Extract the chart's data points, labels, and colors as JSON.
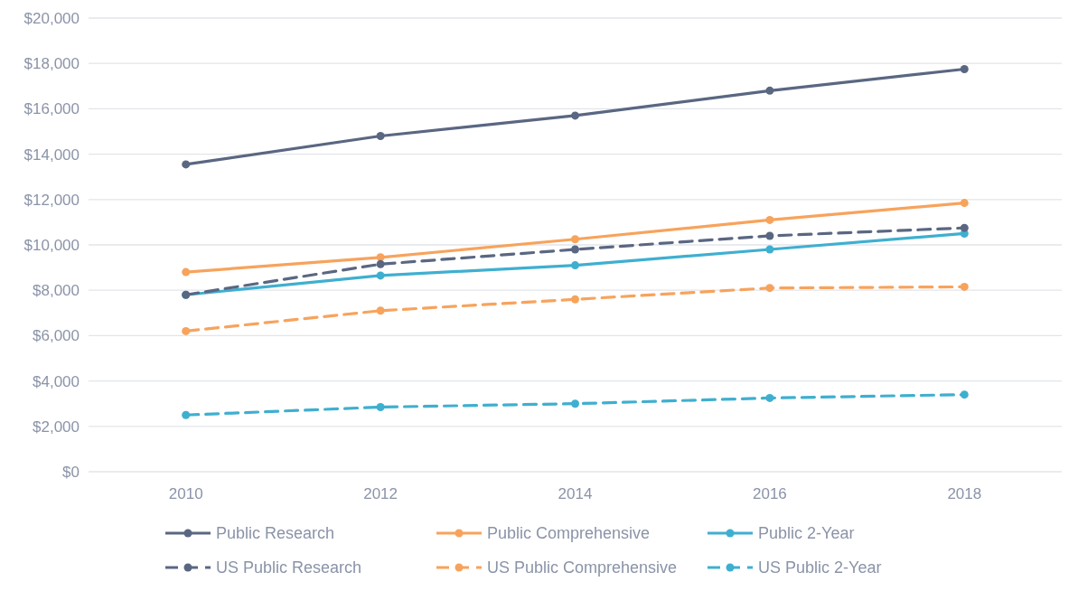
{
  "chart_data": {
    "type": "line",
    "x": [
      2010,
      2012,
      2014,
      2016,
      2018
    ],
    "xlim": [
      2009,
      2019
    ],
    "xticks": [
      2010,
      2012,
      2014,
      2016,
      2018
    ],
    "ylim": [
      0,
      20000
    ],
    "yticks": [
      {
        "value": 0,
        "label": "$0"
      },
      {
        "value": 2000,
        "label": "$2,000"
      },
      {
        "value": 4000,
        "label": "$4,000"
      },
      {
        "value": 6000,
        "label": "$6,000"
      },
      {
        "value": 8000,
        "label": "$8,000"
      },
      {
        "value": 10000,
        "label": "$10,000"
      },
      {
        "value": 12000,
        "label": "$12,000"
      },
      {
        "value": 14000,
        "label": "$14,000"
      },
      {
        "value": 16000,
        "label": "$16,000"
      },
      {
        "value": 18000,
        "label": "$18,000"
      },
      {
        "value": 20000,
        "label": "$20,000"
      }
    ],
    "grid": "y",
    "legend": "bottom",
    "marker": "circle",
    "series": [
      {
        "name": "Public Research",
        "color": "#5a6782",
        "line_style": "solid",
        "values": [
          13550,
          14800,
          15700,
          16800,
          17750
        ]
      },
      {
        "name": "Public Comprehensive",
        "color": "#f7a35c",
        "line_style": "solid",
        "values": [
          8800,
          9450,
          10250,
          11100,
          11850
        ]
      },
      {
        "name": "Public 2-Year",
        "color": "#3fafd0",
        "line_style": "solid",
        "values": [
          7800,
          8650,
          9100,
          9800,
          10500
        ]
      },
      {
        "name": "US Public Research",
        "color": "#5a6782",
        "line_style": "dashed",
        "values": [
          7800,
          9150,
          9800,
          10400,
          10750
        ]
      },
      {
        "name": "US Public Comprehensive",
        "color": "#f7a35c",
        "line_style": "dashed",
        "values": [
          6200,
          7100,
          7600,
          8100,
          8150
        ]
      },
      {
        "name": "US Public 2-Year",
        "color": "#3fafd0",
        "line_style": "dashed",
        "values": [
          2500,
          2850,
          3000,
          3250,
          3400
        ]
      }
    ]
  }
}
